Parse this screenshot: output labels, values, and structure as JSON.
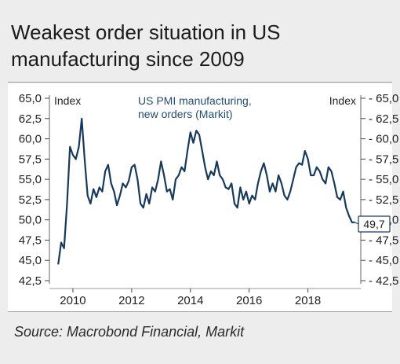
{
  "title_line1": "Weakest order situation in US",
  "title_line2": "manufacturing since 2009",
  "source": "Source: Macrobond Financial, Markit",
  "colors": {
    "line": "#163a5f",
    "panel": "#ededed",
    "text": "#222222"
  },
  "chart_data": {
    "type": "line",
    "left_unit_label": "Index",
    "right_unit_label": "Index",
    "series": [
      {
        "name": "US PMI manufacturing, new orders (Markit)",
        "name_lines": [
          "US PMI manufacturing,",
          "new orders (Markit)"
        ],
        "x": [
          2009.5,
          2009.6,
          2009.7,
          2009.8,
          2009.9,
          2010.0,
          2010.1,
          2010.2,
          2010.3,
          2010.4,
          2010.5,
          2010.6,
          2010.7,
          2010.8,
          2010.9,
          2011.0,
          2011.1,
          2011.2,
          2011.3,
          2011.4,
          2011.5,
          2011.6,
          2011.7,
          2011.8,
          2011.9,
          2012.0,
          2012.1,
          2012.2,
          2012.3,
          2012.4,
          2012.5,
          2012.6,
          2012.7,
          2012.8,
          2012.9,
          2013.0,
          2013.1,
          2013.2,
          2013.3,
          2013.4,
          2013.5,
          2013.6,
          2013.7,
          2013.8,
          2013.9,
          2014.0,
          2014.1,
          2014.2,
          2014.3,
          2014.4,
          2014.5,
          2014.6,
          2014.7,
          2014.8,
          2014.9,
          2015.0,
          2015.1,
          2015.2,
          2015.3,
          2015.4,
          2015.5,
          2015.6,
          2015.7,
          2015.8,
          2015.9,
          2016.0,
          2016.1,
          2016.2,
          2016.3,
          2016.4,
          2016.5,
          2016.6,
          2016.7,
          2016.8,
          2016.9,
          2017.0,
          2017.1,
          2017.2,
          2017.3,
          2017.4,
          2017.5,
          2017.6,
          2017.7,
          2017.8,
          2017.9,
          2018.0,
          2018.1,
          2018.2,
          2018.3,
          2018.4,
          2018.5,
          2018.6,
          2018.7,
          2018.8,
          2018.9,
          2019.0,
          2019.1,
          2019.2,
          2019.3,
          2019.4,
          2019.5,
          2019.6
        ],
        "values": [
          44.5,
          47.2,
          46.5,
          52.0,
          59.0,
          58.0,
          57.5,
          59.0,
          62.5,
          57.5,
          53.0,
          52.0,
          53.8,
          52.8,
          54.0,
          53.5,
          56.0,
          56.8,
          54.5,
          53.5,
          51.8,
          53.0,
          54.5,
          54.0,
          54.8,
          56.5,
          56.8,
          55.0,
          52.0,
          51.5,
          53.2,
          52.0,
          54.0,
          53.5,
          55.0,
          57.2,
          55.5,
          53.5,
          53.8,
          52.5,
          55.0,
          55.5,
          56.5,
          56.0,
          58.5,
          60.8,
          59.5,
          61.0,
          60.5,
          58.5,
          56.5,
          55.0,
          56.0,
          55.5,
          57.2,
          55.5,
          55.0,
          54.0,
          53.8,
          54.5,
          52.0,
          51.5,
          54.0,
          52.5,
          53.5,
          52.0,
          53.0,
          52.5,
          54.5,
          56.0,
          57.0,
          55.5,
          53.5,
          54.5,
          53.5,
          55.5,
          54.5,
          53.0,
          52.5,
          53.5,
          55.0,
          56.5,
          57.0,
          56.8,
          58.5,
          57.5,
          55.5,
          55.5,
          56.5,
          56.0,
          55.0,
          54.5,
          56.5,
          56.0,
          54.5,
          52.8,
          52.5,
          53.5,
          51.5,
          50.5,
          49.7,
          49.7
        ]
      }
    ],
    "last_value_label": "49,7",
    "x_ticks": [
      "2010",
      "2012",
      "2014",
      "2016",
      "2018"
    ],
    "y_ticks_left": [
      "65,0",
      "62,5",
      "60,0",
      "57,5",
      "55,0",
      "52,5",
      "50,0",
      "47,5",
      "45,0",
      "42,5"
    ],
    "y_ticks_right": [
      "65,0",
      "62,5",
      "60,0",
      "57,5",
      "55,0",
      "52,5",
      "50,0",
      "47,5",
      "45,0",
      "42,5"
    ],
    "xlim": [
      2009.2,
      2019.8
    ],
    "ylim": [
      42.5,
      65.0
    ],
    "grid": false,
    "legend": "inline, top-center"
  }
}
